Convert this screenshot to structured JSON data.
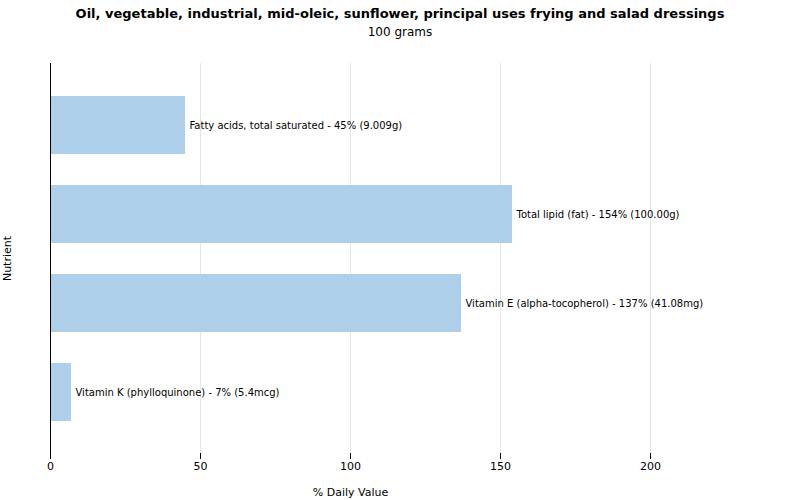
{
  "chart_data": {
    "type": "bar",
    "orientation": "horizontal",
    "title": "Oil, vegetable, industrial, mid-oleic, sunflower, principal uses frying and salad dressings",
    "subtitle": "100 grams",
    "xlabel": "% Daily Value",
    "ylabel": "Nutrient",
    "categories": [
      "Fatty acids, total saturated",
      "Total lipid (fat)",
      "Vitamin E (alpha-tocopherol)",
      "Vitamin K (phylloquinone)"
    ],
    "values": [
      45,
      154,
      137,
      7
    ],
    "value_labels": [
      "Fatty acids, total saturated - 45% (9.009g)",
      "Total lipid (fat) - 154% (100.00g)",
      "Vitamin E (alpha-tocopherol) - 137% (41.08mg)",
      "Vitamin K (phylloquinone) - 7% (5.4mcg)"
    ],
    "data_labels": true,
    "color": "#aecfea",
    "xlim": [
      0,
      200
    ],
    "xticks": [
      0,
      50,
      100,
      150,
      200
    ],
    "grid": true,
    "tick_labels": "x"
  }
}
